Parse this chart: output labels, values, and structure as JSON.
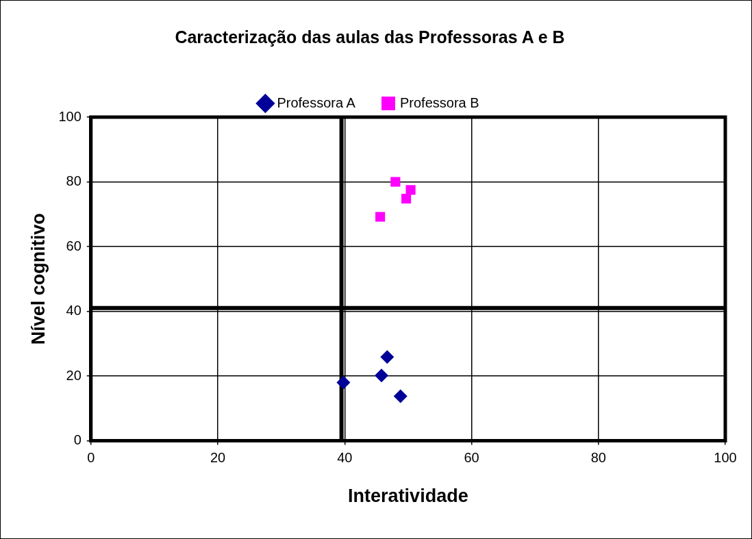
{
  "chart_data": {
    "type": "scatter",
    "title": "Caracterização das aulas das Professoras A e B",
    "xlabel": "Interatividade",
    "ylabel": "Nível cognitivo",
    "xlim": [
      0,
      100
    ],
    "xticks": [
      0,
      20,
      40,
      60,
      80,
      100
    ],
    "ylim": [
      0,
      100
    ],
    "yticks": [
      0,
      20,
      40,
      60,
      80,
      100
    ],
    "grid": true,
    "legend": "top",
    "ref_lines": [
      {
        "axis": "x",
        "value": 39.5,
        "color": "#000000"
      },
      {
        "axis": "y",
        "value": 41,
        "color": "#000000"
      }
    ],
    "series": [
      {
        "name": "Professora A",
        "color": "#000099",
        "marker": "diamond",
        "x": [
          46.7,
          45.8,
          39.8,
          48.8
        ],
        "values": [
          25.9,
          20.2,
          18,
          13.8
        ]
      },
      {
        "name": "Professora B",
        "color": "#ff00ff",
        "marker": "square",
        "x": [
          48,
          50.4,
          49.7,
          45.6
        ],
        "values": [
          80,
          77.5,
          74.8,
          69.2
        ]
      }
    ]
  }
}
